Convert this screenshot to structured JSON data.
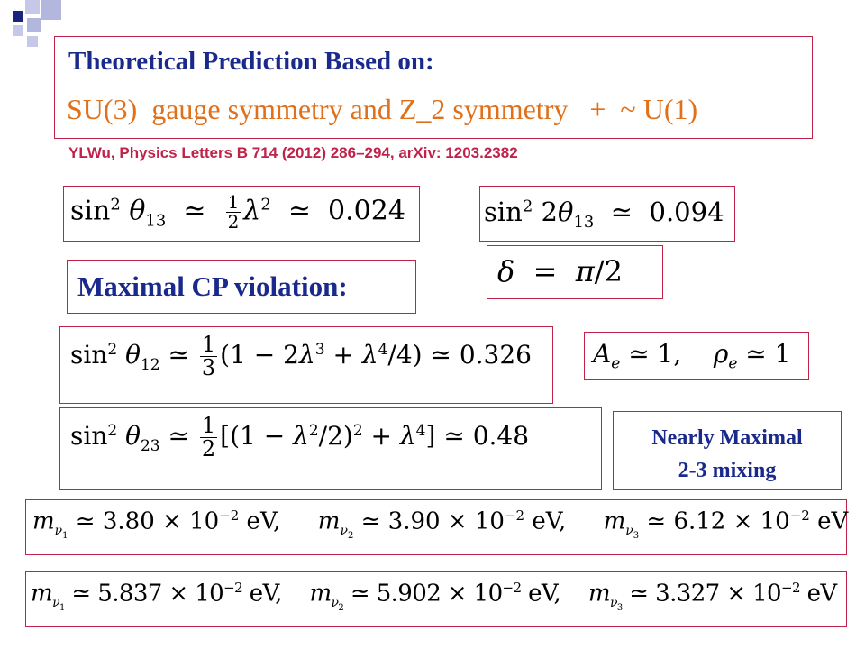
{
  "title": {
    "line1": "Theoretical  Prediction  Based on:",
    "line2": "SU(3)  gauge symmetry and Z_2 symmetry   +  ~ U(1)"
  },
  "reference": "YLWu, Physics Letters B 714 (2012) 286–294,   arXiv: 1203.2382",
  "equations": {
    "sin2_theta13": "sin² θ₁₃ ≃ ½λ² ≃ 0.024",
    "sin2_2theta13": "sin² 2θ₁₃ ≃ 0.094",
    "delta": "δ = π/2",
    "sin2_theta12": "sin² θ₁₂ ≃ 1/3(1 − 2λ³ + λ⁴/4) ≃ 0.326",
    "Ae_rhoe": "Aₑ ≃ 1,  ρₑ ≃ 1",
    "sin2_theta23": "sin² θ₂₃ ≃ 1/2[(1 − λ²/2)² + λ⁴] ≃ 0.48",
    "masses_1": "m_ν1 ≃ 3.80 × 10⁻² eV,  m_ν2 ≃ 3.90 × 10⁻² eV,  m_ν3 ≃ 6.12 × 10⁻² eV",
    "masses_2": "m_ν1 ≃ 5.837 × 10⁻² eV,  m_ν2 ≃ 5.902 × 10⁻² eV,  m_ν3 ≃ 3.327 × 10⁻² eV"
  },
  "labels": {
    "maximal_cp": "Maximal CP violation:",
    "nearly_maximal_line1": "Nearly Maximal",
    "nearly_maximal_line2": "2-3 mixing"
  },
  "values": {
    "s13": "0.024",
    "s2_13": "0.094",
    "s12": "0.326",
    "s23": "0.48",
    "m1a": "3.80",
    "m2a": "3.90",
    "m3a": "6.12",
    "m1b": "5.837",
    "m2b": "5.902",
    "m3b": "3.327"
  },
  "colors": {
    "title_blue": "#1a2a8c",
    "title_orange": "#e0701a",
    "accent_red": "#c0224a",
    "deco_navy": "#1a237e",
    "deco_lavender": "#b3b7de"
  }
}
